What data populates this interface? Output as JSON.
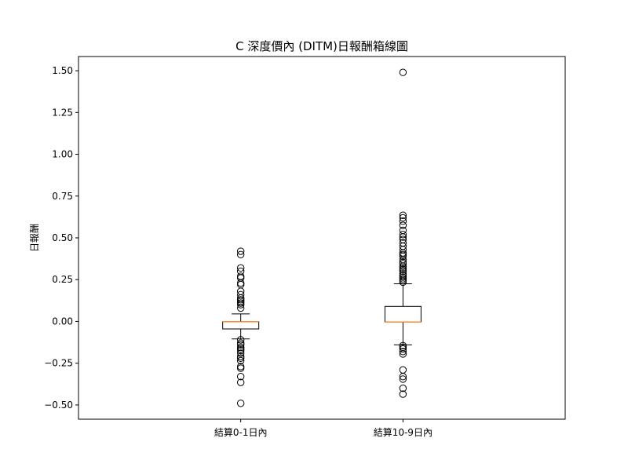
{
  "chart_data": {
    "type": "box",
    "title": "C 深度價內 (DITM)日報酬箱線圖",
    "xlabel": "",
    "ylabel": "日報酬",
    "ylim": [
      -0.585,
      1.585
    ],
    "yticks": [
      -0.5,
      -0.25,
      0.0,
      0.25,
      0.5,
      0.75,
      1.0,
      1.25,
      1.5
    ],
    "ytick_labels": [
      "−0.50",
      "−0.25",
      "0.00",
      "0.25",
      "0.50",
      "0.75",
      "1.00",
      "1.25",
      "1.50"
    ],
    "grid": false,
    "categories": [
      "結算0-1日內",
      "結算10-9日內"
    ],
    "boxes": [
      {
        "name": "結算0-1日內",
        "whisker_low": -0.105,
        "q1": -0.045,
        "median": -0.002,
        "q3": -0.002,
        "whisker_high": 0.045,
        "outliers": [
          0.42,
          0.4,
          0.32,
          0.3,
          0.27,
          0.26,
          0.23,
          0.22,
          0.18,
          0.16,
          0.14,
          0.13,
          0.12,
          0.11,
          0.1,
          0.08,
          -0.11,
          -0.13,
          -0.14,
          -0.155,
          -0.165,
          -0.175,
          -0.19,
          -0.21,
          -0.22,
          -0.235,
          -0.27,
          -0.28,
          -0.33,
          -0.365,
          -0.49
        ]
      },
      {
        "name": "結算10-9日內",
        "whisker_low": -0.14,
        "q1": -0.003,
        "median": -0.003,
        "q3": 0.09,
        "whisker_high": 0.225,
        "outliers": [
          1.49,
          0.635,
          0.62,
          0.6,
          0.575,
          0.545,
          0.52,
          0.505,
          0.49,
          0.47,
          0.45,
          0.43,
          0.41,
          0.4,
          0.39,
          0.37,
          0.355,
          0.345,
          0.33,
          0.32,
          0.31,
          0.3,
          0.285,
          0.275,
          0.265,
          0.255,
          0.245,
          0.235,
          -0.145,
          -0.155,
          -0.165,
          -0.18,
          -0.195,
          -0.29,
          -0.33,
          -0.345,
          -0.4,
          -0.435
        ]
      }
    ],
    "colors": {
      "box": "#000000",
      "median": "#ff7f0e",
      "outlier": "#000000"
    }
  }
}
